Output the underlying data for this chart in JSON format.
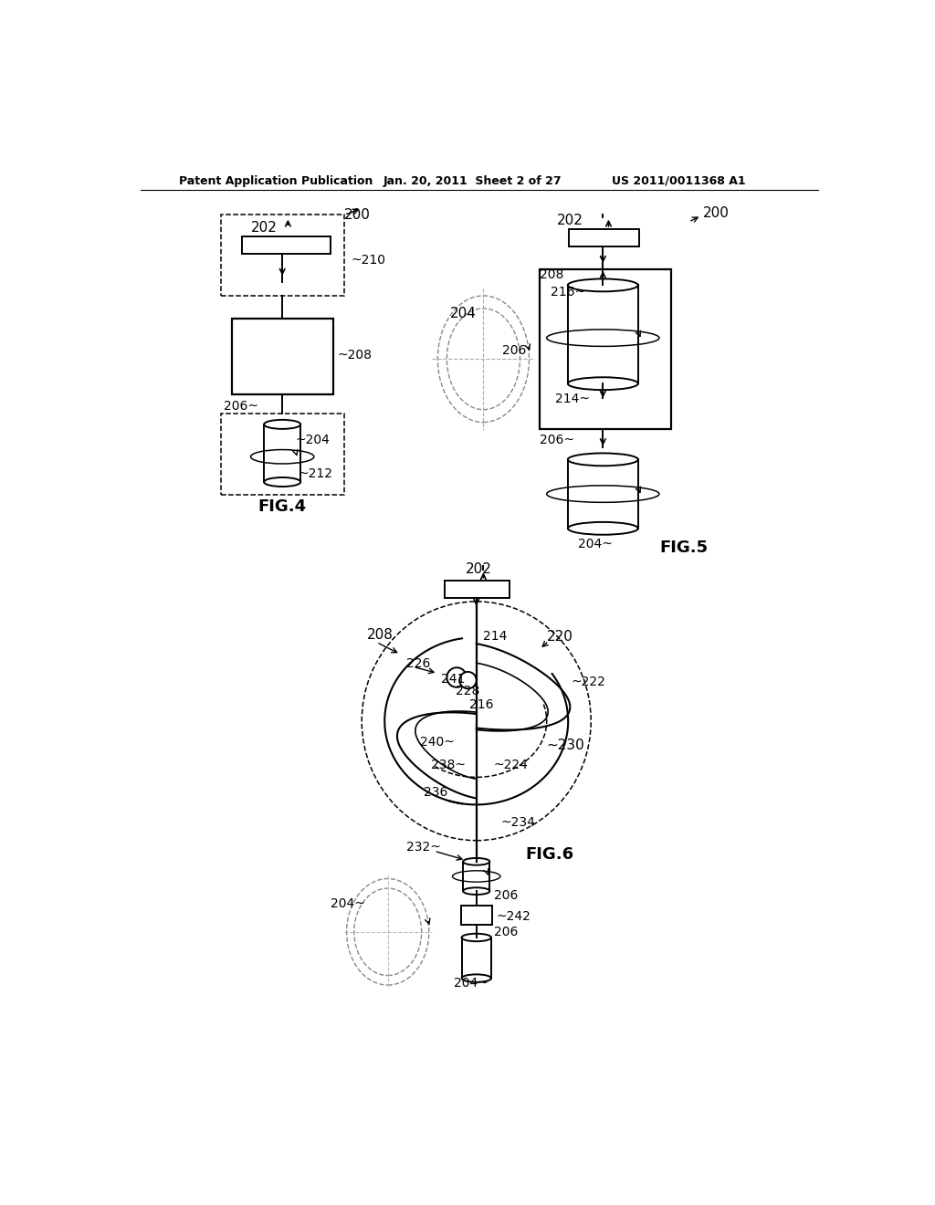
{
  "bg_color": "#ffffff",
  "header_text": "Patent Application Publication",
  "header_date": "Jan. 20, 2011  Sheet 2 of 27",
  "header_patent": "US 2011/0011368 A1",
  "fig4_label": "FIG.4",
  "fig5_label": "FIG.5",
  "fig6_label": "FIG.6"
}
